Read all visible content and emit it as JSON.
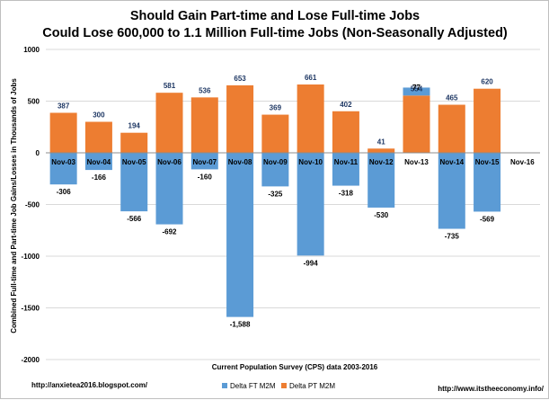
{
  "chart_data": {
    "type": "bar",
    "stacked": true,
    "title": "Should Gain Part-time and Lose Full-time Jobs",
    "subtitle": "Could Lose 600,000 to 1.1 Million Full-time Jobs (Non-Seasonally Adjusted)",
    "xlabel": "Current Population Survey (CPS) data 2003-2016",
    "ylabel": "Combined Full-time and Part-time Job Gains/Losses in Thousands of Jobs",
    "ylim": [
      -2000,
      1000
    ],
    "yticks": [
      -2000,
      -1500,
      -1000,
      -500,
      0,
      500,
      1000
    ],
    "grid": true,
    "legend_position": "bottom",
    "categories": [
      "Nov-03",
      "Nov-04",
      "Nov-05",
      "Nov-06",
      "Nov-07",
      "Nov-08",
      "Nov-09",
      "Nov-10",
      "Nov-11",
      "Nov-12",
      "Nov-13",
      "Nov-14",
      "Nov-15",
      "Nov-16"
    ],
    "series": [
      {
        "name": "Delta FT M2M",
        "color": "#5b9bd5",
        "values": [
          -306,
          -166,
          -566,
          -692,
          -160,
          -1588,
          -325,
          -994,
          -318,
          -530,
          77,
          -735,
          -569,
          null
        ],
        "labels": [
          "-306",
          "-166",
          "-566",
          "-692",
          "-160",
          "-1,588",
          "-325",
          "-994",
          "-318",
          "-530",
          "77",
          "-735",
          "-569",
          ""
        ]
      },
      {
        "name": "Delta PT M2M",
        "color": "#ed7d31",
        "values": [
          387,
          300,
          194,
          581,
          536,
          653,
          369,
          661,
          402,
          41,
          554,
          465,
          620,
          null
        ],
        "labels": [
          "387",
          "300",
          "194",
          "581",
          "536",
          "653",
          "369",
          "661",
          "402",
          "41",
          "554",
          "465",
          "620",
          ""
        ]
      }
    ]
  },
  "footer": {
    "left_url": "http://anxietea2016.blogspot.com/",
    "right_url": "http://www.itstheeconomy.info/"
  }
}
